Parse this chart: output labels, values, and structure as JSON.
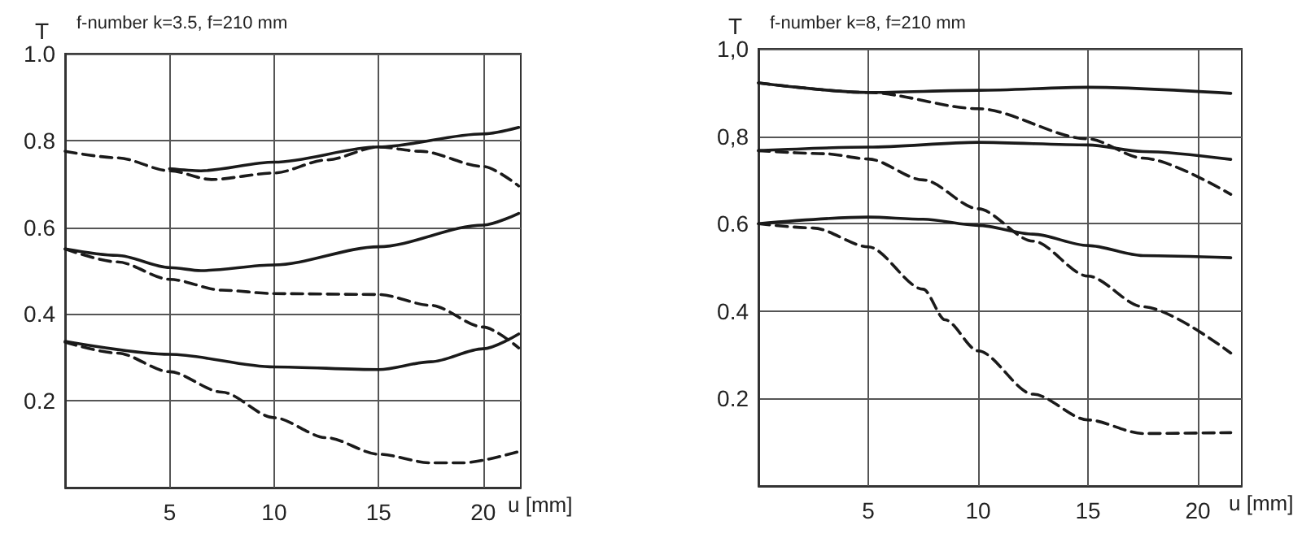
{
  "chart_data": [
    {
      "type": "line",
      "title": "f-number k=3.5, f=210 mm",
      "ylabel": "T",
      "xlabel": "u [mm]",
      "xlim": [
        0,
        21.8
      ],
      "xticks": [
        5,
        10,
        15,
        20
      ],
      "ylim": [
        0,
        1
      ],
      "yticks": [
        {
          "value": 0.2,
          "label": "0.2"
        },
        {
          "value": 0.4,
          "label": "0.4"
        },
        {
          "value": 0.6,
          "label": "0.6"
        },
        {
          "value": 0.8,
          "label": "0.8"
        },
        {
          "value": 1,
          "label": "1.0"
        }
      ],
      "grid": true,
      "marker": "none",
      "series": [
        {
          "color": "#1a1a1a",
          "line_style": "solid",
          "x": [
            5,
            6.5,
            10,
            15,
            20,
            21.7
          ],
          "values": [
            0.735,
            0.73,
            0.75,
            0.785,
            0.815,
            0.83
          ]
        },
        {
          "color": "#1a1a1a",
          "line_style": "dashed",
          "x": [
            0,
            2.5,
            5,
            7,
            10,
            12.5,
            15,
            17,
            20,
            21.7
          ],
          "values": [
            0.775,
            0.76,
            0.73,
            0.71,
            0.725,
            0.755,
            0.785,
            0.775,
            0.74,
            0.695
          ]
        },
        {
          "color": "#1a1a1a",
          "line_style": "solid",
          "x": [
            0,
            2.5,
            5,
            6.5,
            10,
            15,
            20,
            21.7
          ],
          "values": [
            0.55,
            0.535,
            0.507,
            0.5,
            0.513,
            0.555,
            0.605,
            0.632
          ]
        },
        {
          "color": "#1a1a1a",
          "line_style": "dashed",
          "x": [
            0,
            2.5,
            5,
            7.5,
            10,
            15,
            17.5,
            20,
            21.7
          ],
          "values": [
            0.55,
            0.52,
            0.48,
            0.455,
            0.447,
            0.445,
            0.42,
            0.37,
            0.322
          ]
        },
        {
          "color": "#1a1a1a",
          "line_style": "solid",
          "x": [
            0,
            5,
            10,
            15,
            17.5,
            20,
            21.7
          ],
          "values": [
            0.337,
            0.307,
            0.278,
            0.272,
            0.29,
            0.32,
            0.354
          ]
        },
        {
          "color": "#1a1a1a",
          "line_style": "dashed",
          "x": [
            0,
            2.5,
            5,
            7.5,
            10,
            12.5,
            15,
            17.5,
            19,
            21.7
          ],
          "values": [
            0.335,
            0.31,
            0.267,
            0.22,
            0.161,
            0.115,
            0.077,
            0.057,
            0.057,
            0.083
          ]
        }
      ]
    },
    {
      "type": "line",
      "title": "f-number k=8, f=210 mm",
      "ylabel": "T",
      "xlabel": "u [mm]",
      "xlim": [
        0,
        22
      ],
      "xticks": [
        5,
        10,
        15,
        20
      ],
      "ylim": [
        0,
        1
      ],
      "yticks": [
        {
          "value": 0.2,
          "label": "0.2"
        },
        {
          "value": 0.4,
          "label": "0.4"
        },
        {
          "value": 0.6,
          "label": "0.6"
        },
        {
          "value": 0.8,
          "label": "0,8"
        },
        {
          "value": 1,
          "label": "1,0"
        }
      ],
      "grid": true,
      "marker": "none",
      "series": [
        {
          "color": "#1a1a1a",
          "line_style": "solid",
          "x": [
            0,
            5,
            10,
            15,
            21.5
          ],
          "values": [
            0.922,
            0.9,
            0.905,
            0.912,
            0.898
          ]
        },
        {
          "color": "#1a1a1a",
          "line_style": "dashed",
          "x": [
            0,
            5,
            10,
            15,
            17.5,
            21.5
          ],
          "values": [
            0.922,
            0.9,
            0.863,
            0.794,
            0.75,
            0.667
          ]
        },
        {
          "color": "#1a1a1a",
          "line_style": "solid",
          "x": [
            0,
            5,
            10,
            15,
            17.5,
            21.5
          ],
          "values": [
            0.767,
            0.775,
            0.786,
            0.78,
            0.765,
            0.747
          ]
        },
        {
          "color": "#1a1a1a",
          "line_style": "dashed",
          "x": [
            0,
            3,
            5,
            7.5,
            10,
            12.5,
            15,
            17.5,
            21.5
          ],
          "values": [
            0.767,
            0.76,
            0.748,
            0.7,
            0.634,
            0.56,
            0.48,
            0.41,
            0.304
          ]
        },
        {
          "color": "#1a1a1a",
          "line_style": "solid",
          "x": [
            0,
            5,
            7.5,
            10,
            12.5,
            15,
            17.5,
            21.5
          ],
          "values": [
            0.6,
            0.615,
            0.61,
            0.596,
            0.576,
            0.55,
            0.527,
            0.522
          ]
        },
        {
          "color": "#1a1a1a",
          "line_style": "dashed",
          "x": [
            0,
            2.5,
            5,
            7.5,
            8.5,
            10,
            12.5,
            15,
            17.5,
            21.5
          ],
          "values": [
            0.6,
            0.59,
            0.547,
            0.45,
            0.38,
            0.309,
            0.21,
            0.151,
            0.12,
            0.122
          ]
        }
      ]
    }
  ]
}
